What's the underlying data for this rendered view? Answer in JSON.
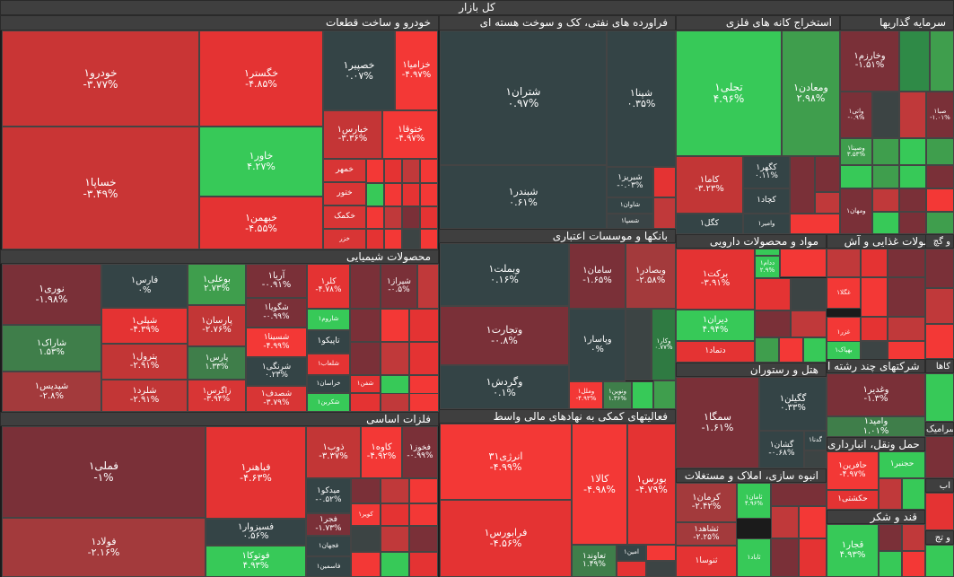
{
  "title": "کل بازار",
  "colors": {
    "dark_red": "#7a3038",
    "mid_red": "#c0393a",
    "red": "#e03433",
    "bright_red": "#f33836",
    "neutral": "#3c4444",
    "green": "#3f9e4d",
    "bright_green": "#37c958",
    "mid_green": "#2f8a47"
  },
  "sectors": [
    {
      "id": "auto",
      "name": "خودرو و ساخت قطعات"
    },
    {
      "id": "oil",
      "name": "فراورده های نفتی، کک و سوخت هسته ای"
    },
    {
      "id": "mining",
      "name": "استخراج کانه های فلزی"
    },
    {
      "id": "invest",
      "name": "سرمایه گذاریها"
    },
    {
      "id": "chem",
      "name": "محصولات شیمیایی"
    },
    {
      "id": "banks",
      "name": "بانکها و موسسات اعتباری"
    },
    {
      "id": "pharma",
      "name": "مواد و محصولات دارویی"
    },
    {
      "id": "food",
      "name": "محصولات غذایی و آش"
    },
    {
      "id": "metals",
      "name": "فلزات اساسی"
    },
    {
      "id": "fin",
      "name": "فعالیتهای کمکی به نهادهای مالی واسط"
    },
    {
      "id": "hotel",
      "name": "هتل و رستوران"
    },
    {
      "id": "multi",
      "name": "شرکتهای چند رشته ا"
    },
    {
      "id": "mass",
      "name": "انبوه سازی، املاک و مستغلات"
    },
    {
      "id": "trans",
      "name": "حمل ونقل، انبارداری"
    },
    {
      "id": "sugar",
      "name": "قند و شکر"
    },
    {
      "id": "tile_gch",
      "name": "کاشی و سرامیک"
    },
    {
      "id": "s_gj",
      "name": "و گچ"
    },
    {
      "id": "s_gah",
      "name": "کاها"
    },
    {
      "id": "s_ab",
      "name": "اب"
    },
    {
      "id": "s_tj",
      "name": "و تج"
    }
  ],
  "tiles": [
    {
      "id": "khodro",
      "name": "خودرو۱",
      "pct": "-۳.۷۷%",
      "color": "#c93535"
    },
    {
      "id": "khsapa",
      "name": "خساپا۱",
      "pct": "-۳.۴۹%",
      "color": "#c93535"
    },
    {
      "id": "khegostar",
      "name": "خگستر۱",
      "pct": "-۴.۸۵%",
      "color": "#e43333"
    },
    {
      "id": "khavar",
      "name": "خاور۱",
      "pct": "۴.۲۷%",
      "color": "#37c958"
    },
    {
      "id": "khbahman",
      "name": "خبهمن۱",
      "pct": "-۴.۵۵%",
      "color": "#e43333"
    },
    {
      "id": "khosapir",
      "name": "خصپیر۱",
      "pct": "۰.۰۷%",
      "color": "#344446"
    },
    {
      "id": "khzamiya",
      "name": "خزامیا۱",
      "pct": "-۴.۹۷%",
      "color": "#f33836"
    },
    {
      "id": "kharaps",
      "name": "خپارس۱",
      "pct": "-۳.۳۶%",
      "color": "#c43536"
    },
    {
      "id": "khtogha",
      "name": "ختوقا۱",
      "pct": "-۴.۹۷%",
      "color": "#f33836"
    },
    {
      "id": "khomhr",
      "name": "خمهر",
      "pct": "",
      "color": "#d83535"
    },
    {
      "id": "khtoor",
      "name": "ختور",
      "pct": "",
      "color": "#d83535"
    },
    {
      "id": "khkamak",
      "name": "خکمک",
      "pct": "",
      "color": "#d83535"
    },
    {
      "id": "khazr",
      "name": "خزر",
      "pct": "",
      "color": "#d83535"
    },
    {
      "id": "shatran",
      "name": "شتران۱",
      "pct": "۰.۹۷%",
      "color": "#344446"
    },
    {
      "id": "shbandar",
      "name": "شبندر۱",
      "pct": "۰.۶۱%",
      "color": "#344446"
    },
    {
      "id": "shpna",
      "name": "شپنا۱",
      "pct": "۰.۳۵%",
      "color": "#344446"
    },
    {
      "id": "shbriz",
      "name": "شبریز۱",
      "pct": "-۰.۰۳%",
      "color": "#344446"
    },
    {
      "id": "shavan",
      "name": "شاوان۱",
      "pct": "",
      "color": "#344446"
    },
    {
      "id": "shsepa",
      "name": "شسپا۱",
      "pct": "",
      "color": "#3a4446"
    },
    {
      "id": "tajli",
      "name": "تجلی۱",
      "pct": "۴.۹۶%",
      "color": "#37c958"
    },
    {
      "id": "vamaaden",
      "name": "ومعادن۱",
      "pct": "۲.۹۸%",
      "color": "#3f9e4d"
    },
    {
      "id": "kama",
      "name": "کاما۱",
      "pct": "-۳.۲۳%",
      "color": "#c23636"
    },
    {
      "id": "kgohar",
      "name": "کگهر۱",
      "pct": "۰.۱۱%",
      "color": "#344446"
    },
    {
      "id": "kchad",
      "name": "کچاد۱",
      "pct": "",
      "color": "#344446"
    },
    {
      "id": "kgol",
      "name": "کگل۱",
      "pct": "",
      "color": "#344446"
    },
    {
      "id": "vamir",
      "name": "وامیر۱",
      "pct": "",
      "color": "#344446"
    },
    {
      "id": "vkharazm",
      "name": "وخارزم۱",
      "pct": "-۱.۵۱%",
      "color": "#7a3038"
    },
    {
      "id": "vsina",
      "name": "وصینا۱",
      "pct": "۳.۵۳%",
      "color": "#3f9e4d"
    },
    {
      "id": "vmahan",
      "name": "ومهان۱",
      "pct": "",
      "color": "#7a3038"
    },
    {
      "id": "vati",
      "name": "واتی۱",
      "pct": "-۰.۹%",
      "color": "#7a3038"
    },
    {
      "id": "sabah",
      "name": "صبا۱",
      "pct": "-۱.۰۱%",
      "color": "#7a3038"
    },
    {
      "id": "noori",
      "name": "نوری۱",
      "pct": "-۱.۹۸%",
      "color": "#7a3038"
    },
    {
      "id": "sharak",
      "name": "شاراک۱",
      "pct": "۱.۵۳%",
      "color": "#3f7e4a"
    },
    {
      "id": "shapdis",
      "name": "شپدیس۱",
      "pct": "-۲.۸%",
      "color": "#a33a3c"
    },
    {
      "id": "fars",
      "name": "فارس۱",
      "pct": "۰%",
      "color": "#344446"
    },
    {
      "id": "shepli",
      "name": "شپلی۱",
      "pct": "-۴.۳۹%",
      "color": "#e43333"
    },
    {
      "id": "petrol",
      "name": "پترول۱",
      "pct": "-۲.۹۱%",
      "color": "#c23636"
    },
    {
      "id": "shlard",
      "name": "شلرد۱",
      "pct": "-۲.۹۱%",
      "color": "#c23636"
    },
    {
      "id": "bouali",
      "name": "بوعلی۱",
      "pct": "۲.۷۳%",
      "color": "#3f9e4d"
    },
    {
      "id": "parsan",
      "name": "پارسان۱",
      "pct": "-۲.۷۶%",
      "color": "#c23636"
    },
    {
      "id": "pars",
      "name": "پارس۱",
      "pct": "۱.۳۳%",
      "color": "#3f7e4a"
    },
    {
      "id": "zagros",
      "name": "زاگرس۱",
      "pct": "-۳.۹۴%",
      "color": "#d83535"
    },
    {
      "id": "araya",
      "name": "آریا۱",
      "pct": "-۰.۹۱%",
      "color": "#7a3038"
    },
    {
      "id": "shagooya",
      "name": "شگویا۱",
      "pct": "-۰.۹۹%",
      "color": "#7a3038"
    },
    {
      "id": "shesina",
      "name": "شسینا۱",
      "pct": "-۴.۹۹%",
      "color": "#f33836"
    },
    {
      "id": "shartagi",
      "name": "شرنگی۱",
      "pct": "۰.۲۳%",
      "color": "#344446"
    },
    {
      "id": "shsadaf",
      "name": "شصدف۱",
      "pct": "-۳.۷۹%",
      "color": "#d83535"
    },
    {
      "id": "kolor",
      "name": "کلر۱",
      "pct": "-۴.۷۸%",
      "color": "#e43333"
    },
    {
      "id": "shiraz",
      "name": "شیراز۱",
      "pct": "-۰.۵%",
      "color": "#7a3038"
    },
    {
      "id": "sharoom",
      "name": "شاروم۱",
      "pct": "",
      "color": "#37c958"
    },
    {
      "id": "tapiko",
      "name": "تاپیکو۱",
      "pct": "",
      "color": "#344446"
    },
    {
      "id": "shalab",
      "name": "شلعاب۱",
      "pct": "",
      "color": "#e43333"
    },
    {
      "id": "khorasan",
      "name": "خراسان۱",
      "pct": "",
      "color": "#344446"
    },
    {
      "id": "shafan",
      "name": "شفن۱",
      "pct": "",
      "color": "#e43333"
    },
    {
      "id": "shakarbin",
      "name": "شکربن۱",
      "pct": "",
      "color": "#37c958"
    },
    {
      "id": "vbemellat",
      "name": "وبملت۱",
      "pct": "۰.۱۶%",
      "color": "#344446"
    },
    {
      "id": "vtejarat",
      "name": "وتجارت۱",
      "pct": "-۰.۸%",
      "color": "#7a3038"
    },
    {
      "id": "vgardesh",
      "name": "وگردش۱",
      "pct": "۰.۱%",
      "color": "#344446"
    },
    {
      "id": "saman",
      "name": "سامان۱",
      "pct": "-۱.۶۵%",
      "color": "#7a3038"
    },
    {
      "id": "vbsader",
      "name": "وبصادر۱",
      "pct": "-۲.۵۸%",
      "color": "#a33a3c"
    },
    {
      "id": "vpasar",
      "name": "وپاسار۱",
      "pct": "۰%",
      "color": "#344446"
    },
    {
      "id": "vkar",
      "name": "وکار۱",
      "pct": "۰.۷۷%",
      "color": "#2f7a42"
    },
    {
      "id": "vmelal",
      "name": "وملل۱",
      "pct": "-۴.۹۳%",
      "color": "#f33836"
    },
    {
      "id": "vnovin",
      "name": "ونوین۱",
      "pct": "۱.۳۶%",
      "color": "#3f7e4a"
    },
    {
      "id": "barekat",
      "name": "برکت۱",
      "pct": "-۳.۹۱%",
      "color": "#e43333"
    },
    {
      "id": "dirvan",
      "name": "دیران۱",
      "pct": "۴.۹۴%",
      "color": "#37c958"
    },
    {
      "id": "dtamad",
      "name": "دتماد۱",
      "pct": "",
      "color": "#e43333"
    },
    {
      "id": "dadam",
      "name": "ددام۱",
      "pct": "۲.۹%",
      "color": "#37c958"
    },
    {
      "id": "ghegla",
      "name": "غگلا۱",
      "pct": "",
      "color": "#f33836"
    },
    {
      "id": "ghazar",
      "name": "غزر۱",
      "pct": "",
      "color": "#f33836"
    },
    {
      "id": "bahpak",
      "name": "بهپاک۱",
      "pct": "",
      "color": "#37c958"
    },
    {
      "id": "fameli",
      "name": "فملی۱",
      "pct": "-۱%",
      "color": "#7a3038"
    },
    {
      "id": "foolad",
      "name": "فولاد۱",
      "pct": "-۲.۱۶%",
      "color": "#a33a3c"
    },
    {
      "id": "fabahonar",
      "name": "فباهنر۱",
      "pct": "-۴.۶۳%",
      "color": "#e43333"
    },
    {
      "id": "fasivar",
      "name": "فسپزوار۱",
      "pct": "۰.۵۶%",
      "color": "#344446"
    },
    {
      "id": "fotoka",
      "name": "فوتوکا۱",
      "pct": "۴.۹۳%",
      "color": "#37c958"
    },
    {
      "id": "zob",
      "name": "ذوب۱",
      "pct": "-۳.۳۷%",
      "color": "#c23636"
    },
    {
      "id": "kave",
      "name": "کاوه۱",
      "pct": "-۴.۹۲%",
      "color": "#f33836"
    },
    {
      "id": "fkhooz",
      "name": "فخوز۱",
      "pct": "-۰.۹۹%",
      "color": "#7a3038"
    },
    {
      "id": "meydako",
      "name": "میدکو۱",
      "pct": "-۰.۵۲%",
      "color": "#344446"
    },
    {
      "id": "fajr",
      "name": "فجر۱",
      "pct": "-۱.۷۳%",
      "color": "#7a3038"
    },
    {
      "id": "fajhan",
      "name": "فجهان۱",
      "pct": "",
      "color": "#344446"
    },
    {
      "id": "fasmin",
      "name": "فاسمین۱",
      "pct": "",
      "color": "#344446"
    },
    {
      "id": "kavir",
      "name": "کویر۱",
      "pct": "",
      "color": "#f33836"
    },
    {
      "id": "anerjy3",
      "name": "انرژی۳۱",
      "pct": "-۴.۹۹%",
      "color": "#f33836"
    },
    {
      "id": "farabours",
      "name": "فرابورس۱",
      "pct": "-۴.۵۶%",
      "color": "#e43333"
    },
    {
      "id": "kala",
      "name": "کالا۱",
      "pct": "-۴.۹۸%",
      "color": "#f33836"
    },
    {
      "id": "bours",
      "name": "بورس۱",
      "pct": "-۴.۷۹%",
      "color": "#e43333"
    },
    {
      "id": "taavond",
      "name": "تعاوند۱",
      "pct": "۱.۴۹%",
      "color": "#3f7e4a"
    },
    {
      "id": "amin",
      "name": "امین۱",
      "pct": "",
      "color": "#344446"
    },
    {
      "id": "semga",
      "name": "سمگا۱",
      "pct": "-۱.۶۱%",
      "color": "#7a3038"
    },
    {
      "id": "gegilan",
      "name": "گگیلن۱",
      "pct": "۰.۳۳%",
      "color": "#344446"
    },
    {
      "id": "geshan",
      "name": "گشان۱",
      "pct": "-۰.۶۸%",
      "color": "#344446"
    },
    {
      "id": "gadna",
      "name": "گدنا۱",
      "pct": "",
      "color": "#344446"
    },
    {
      "id": "vaghadir",
      "name": "وغدیر۱",
      "pct": "-۱.۳%",
      "color": "#7a3038"
    },
    {
      "id": "vamid",
      "name": "وامید۱",
      "pct": "۱.۰۱%",
      "color": "#3f7e4a"
    },
    {
      "id": "kerman",
      "name": "کرمان۱",
      "pct": "-۲.۴۲%",
      "color": "#a33a3c"
    },
    {
      "id": "saman2",
      "name": "ثامان۱",
      "pct": "۴.۹۶%",
      "color": "#37c958"
    },
    {
      "id": "shahed",
      "name": "ثشاهد۱",
      "pct": "-۲.۲۵%",
      "color": "#a33a3c"
    },
    {
      "id": "sanvsa",
      "name": "ثنوسا۱",
      "pct": "",
      "color": "#e43333"
    },
    {
      "id": "sabad",
      "name": "ثاباد۱",
      "pct": "",
      "color": "#37c958"
    },
    {
      "id": "hafarin",
      "name": "حافرین۱",
      "pct": "-۴.۹۷%",
      "color": "#f33836"
    },
    {
      "id": "hakashti",
      "name": "حکشتی۱",
      "pct": "",
      "color": "#e43333"
    },
    {
      "id": "hjanbar",
      "name": "حجنبر۱",
      "pct": "",
      "color": "#37c958"
    },
    {
      "id": "ghajar",
      "name": "قجار۱",
      "pct": "۴.۹۳%",
      "color": "#37c958"
    }
  ]
}
